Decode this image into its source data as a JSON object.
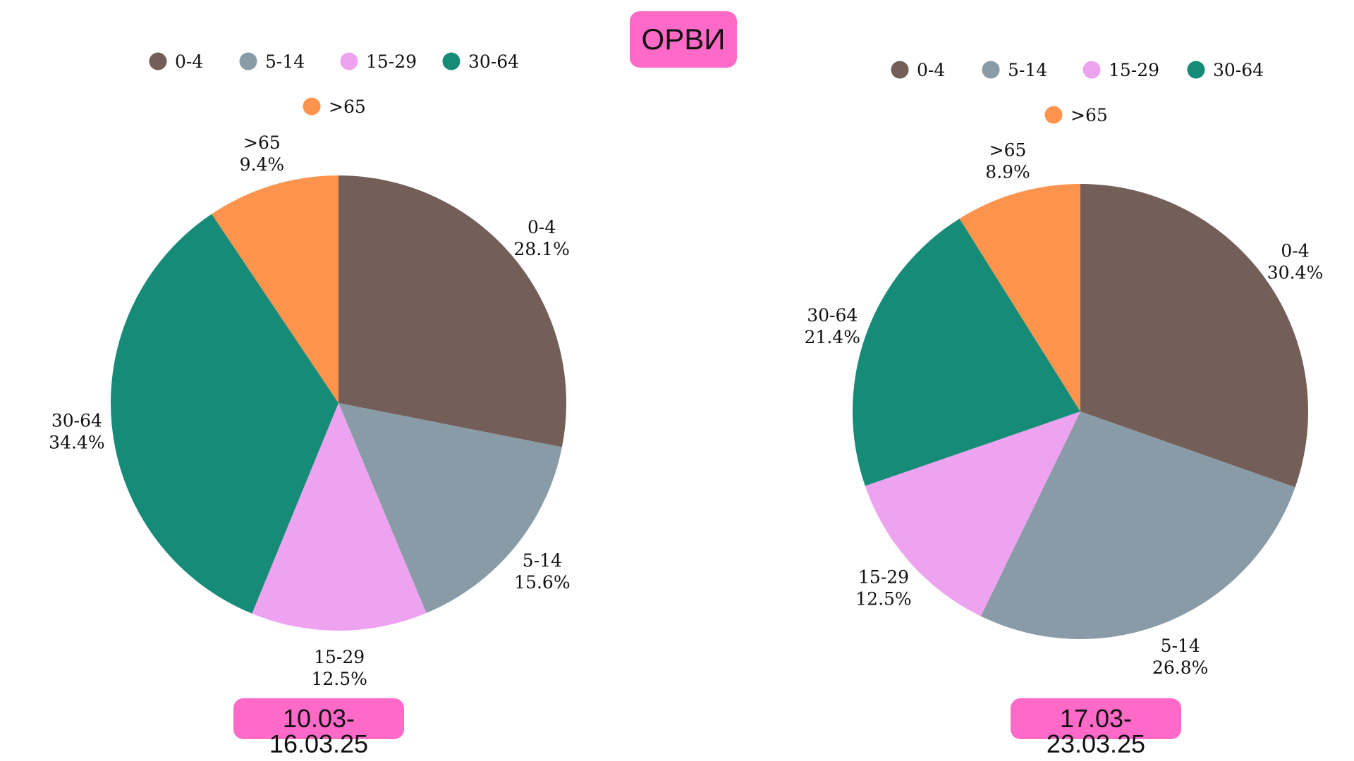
{
  "title": "ОРВИ",
  "colors": {
    "0-4": "#735e58",
    "5-14": "#889ba6",
    "15-29": "#eda3f0",
    "30-64": "#168b77",
    ">65": "#fd944e",
    "badge": "#ff69c8"
  },
  "chart_data": [
    {
      "type": "pie",
      "title": "",
      "period": "10.03-16.03.25",
      "legend": [
        "0-4",
        "5-14",
        "15-29",
        "30-64",
        ">65"
      ],
      "slices": [
        {
          "label": "0-4",
          "value": 28.1,
          "text": "28.1%"
        },
        {
          "label": "5-14",
          "value": 15.6,
          "text": "15.6%"
        },
        {
          "label": "15-29",
          "value": 12.5,
          "text": "12.5%"
        },
        {
          "label": "30-64",
          "value": 34.4,
          "text": "34.4%"
        },
        {
          "label": ">65",
          "value": 9.4,
          "text": "9.4%"
        }
      ],
      "legend_placement": "top"
    },
    {
      "type": "pie",
      "title": "",
      "period": "17.03-23.03.25",
      "legend": [
        "0-4",
        "5-14",
        "15-29",
        "30-64",
        ">65"
      ],
      "slices": [
        {
          "label": "0-4",
          "value": 30.4,
          "text": "30.4%"
        },
        {
          "label": "5-14",
          "value": 26.8,
          "text": "26.8%"
        },
        {
          "label": "15-29",
          "value": 12.5,
          "text": "12.5%"
        },
        {
          "label": "30-64",
          "value": 21.4,
          "text": "21.4%"
        },
        {
          "label": ">65",
          "value": 8.9,
          "text": "8.9%"
        }
      ],
      "legend_placement": "top"
    }
  ]
}
